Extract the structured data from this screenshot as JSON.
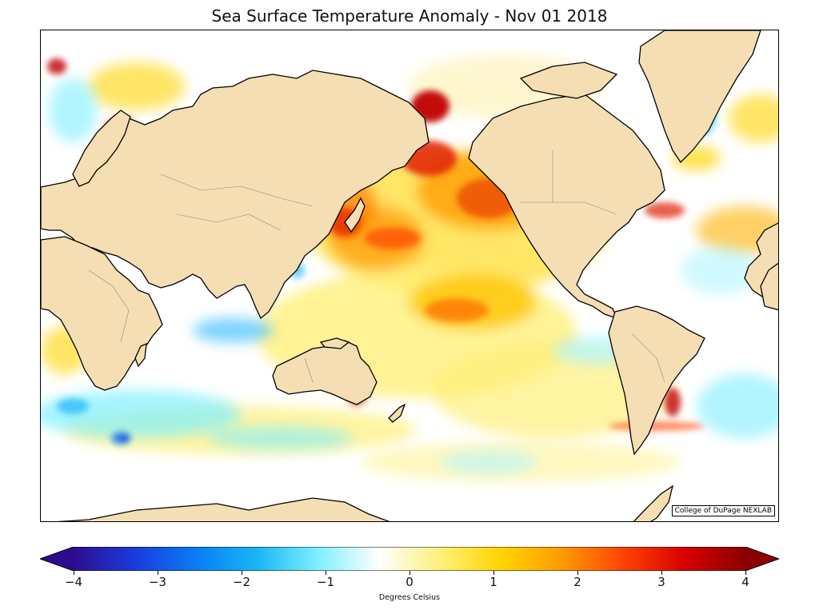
{
  "title": "Sea Surface Temperature Anomaly - Nov 01 2018",
  "credit": "College of DuPage NEXLAB",
  "colorbar": {
    "label": "Degrees Celsius",
    "min": -4,
    "max": 4,
    "ticks": [
      {
        "value": -4,
        "label": "−4"
      },
      {
        "value": -3,
        "label": "−3"
      },
      {
        "value": -2,
        "label": "−2"
      },
      {
        "value": -1,
        "label": "−1"
      },
      {
        "value": 0,
        "label": "0"
      },
      {
        "value": 1,
        "label": "1"
      },
      {
        "value": 2,
        "label": "2"
      },
      {
        "value": 3,
        "label": "3"
      },
      {
        "value": 4,
        "label": "4"
      }
    ],
    "colors": [
      "#2d0d8f",
      "#1a3bdc",
      "#0a7cf5",
      "#19b6f5",
      "#7fefff",
      "#ffffff",
      "#fff07a",
      "#ffd400",
      "#ff9a00",
      "#ff4400",
      "#d90000",
      "#8b0000"
    ]
  },
  "map": {
    "land_color": "#f5deb3",
    "ocean_color": "#ffffff",
    "coast_color": "#000000",
    "border_color": "#888888"
  }
}
